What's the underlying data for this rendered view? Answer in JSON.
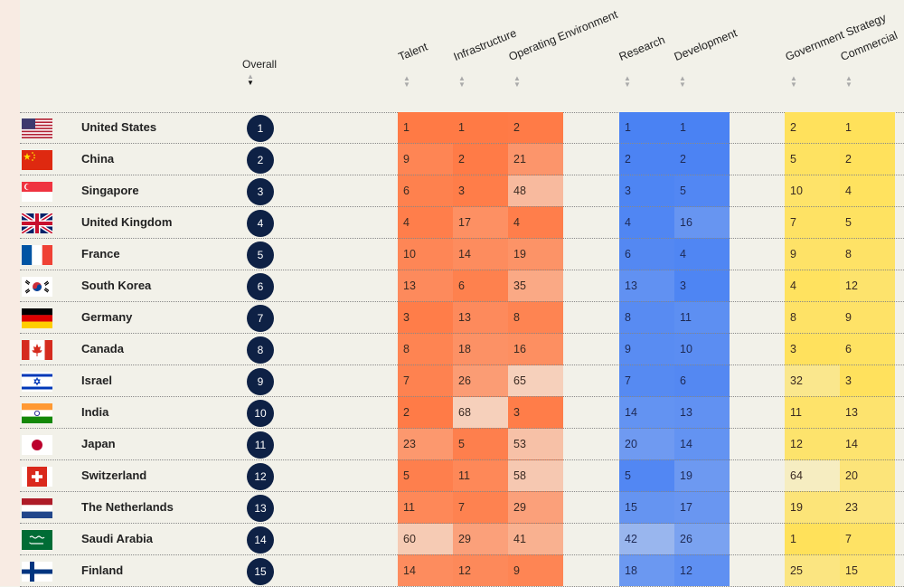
{
  "headers": {
    "overall": "Overall",
    "talent": "Talent",
    "infrastructure": "Infrastructure",
    "operating": "Operating Environment",
    "research": "Research",
    "development": "Development",
    "government": "Government Strategy",
    "commercial": "Commercial"
  },
  "colors": {
    "orange": "#ff7a45",
    "blue": "#4a82f3",
    "yellow": "#ffe15a",
    "rank_badge": "#0e2145"
  },
  "rows": [
    {
      "country": "United States",
      "flag": "us-flag-icon",
      "rank": "1",
      "talent": 1,
      "infrastructure": 1,
      "operating": 2,
      "research": 1,
      "development": 1,
      "government": 2,
      "commercial": 1
    },
    {
      "country": "China",
      "flag": "china-flag-icon",
      "rank": "2",
      "talent": 9,
      "infrastructure": 2,
      "operating": 21,
      "research": 2,
      "development": 2,
      "government": 5,
      "commercial": 2
    },
    {
      "country": "Singapore",
      "flag": "singapore-flag-icon",
      "rank": "3",
      "talent": 6,
      "infrastructure": 3,
      "operating": 48,
      "research": 3,
      "development": 5,
      "government": 10,
      "commercial": 4
    },
    {
      "country": "United Kingdom",
      "flag": "uk-flag-icon",
      "rank": "4",
      "talent": 4,
      "infrastructure": 17,
      "operating": 4,
      "research": 4,
      "development": 16,
      "government": 7,
      "commercial": 5
    },
    {
      "country": "France",
      "flag": "france-flag-icon",
      "rank": "5",
      "talent": 10,
      "infrastructure": 14,
      "operating": 19,
      "research": 6,
      "development": 4,
      "government": 9,
      "commercial": 8
    },
    {
      "country": "South Korea",
      "flag": "south-korea-flag-icon",
      "rank": "6",
      "talent": 13,
      "infrastructure": 6,
      "operating": 35,
      "research": 13,
      "development": 3,
      "government": 4,
      "commercial": 12
    },
    {
      "country": "Germany",
      "flag": "germany-flag-icon",
      "rank": "7",
      "talent": 3,
      "infrastructure": 13,
      "operating": 8,
      "research": 8,
      "development": 11,
      "government": 8,
      "commercial": 9
    },
    {
      "country": "Canada",
      "flag": "canada-flag-icon",
      "rank": "8",
      "talent": 8,
      "infrastructure": 18,
      "operating": 16,
      "research": 9,
      "development": 10,
      "government": 3,
      "commercial": 6
    },
    {
      "country": "Israel",
      "flag": "israel-flag-icon",
      "rank": "9",
      "talent": 7,
      "infrastructure": 26,
      "operating": 65,
      "research": 7,
      "development": 6,
      "government": 32,
      "commercial": 3
    },
    {
      "country": "India",
      "flag": "india-flag-icon",
      "rank": "10",
      "talent": 2,
      "infrastructure": 68,
      "operating": 3,
      "research": 14,
      "development": 13,
      "government": 11,
      "commercial": 13
    },
    {
      "country": "Japan",
      "flag": "japan-flag-icon",
      "rank": "11",
      "talent": 23,
      "infrastructure": 5,
      "operating": 53,
      "research": 20,
      "development": 14,
      "government": 12,
      "commercial": 14
    },
    {
      "country": "Switzerland",
      "flag": "switzerland-flag-icon",
      "rank": "12",
      "talent": 5,
      "infrastructure": 11,
      "operating": 58,
      "research": 5,
      "development": 19,
      "government": 64,
      "commercial": 20
    },
    {
      "country": "The Netherlands",
      "flag": "netherlands-flag-icon",
      "rank": "13",
      "talent": 11,
      "infrastructure": 7,
      "operating": 29,
      "research": 15,
      "development": 17,
      "government": 19,
      "commercial": 23
    },
    {
      "country": "Saudi Arabia",
      "flag": "saudi-arabia-flag-icon",
      "rank": "14",
      "talent": 60,
      "infrastructure": 29,
      "operating": 41,
      "research": 42,
      "development": 26,
      "government": 1,
      "commercial": 7
    },
    {
      "country": "Finland",
      "flag": "finland-flag-icon",
      "rank": "15",
      "talent": 14,
      "infrastructure": 12,
      "operating": 9,
      "research": 18,
      "development": 12,
      "government": 25,
      "commercial": 15
    }
  ]
}
